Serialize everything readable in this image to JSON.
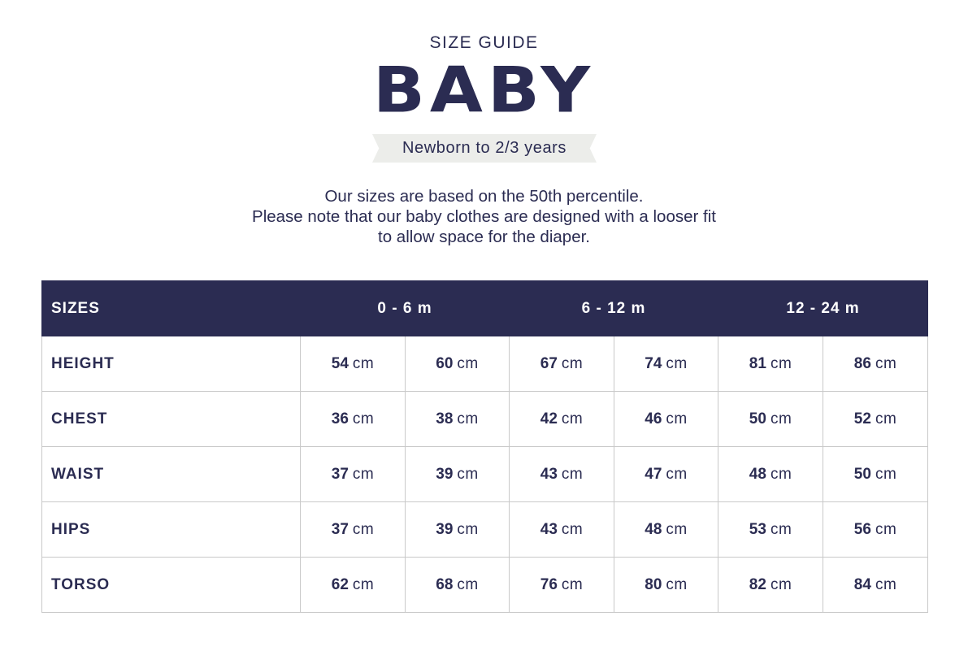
{
  "header": {
    "eyebrow": "SIZE GUIDE",
    "title": "BABY",
    "ribbon": "Newborn to 2/3 years"
  },
  "intro": {
    "line1": "Our sizes are based on the 50th percentile.",
    "line2": "Please note that our baby clothes are designed with a looser fit",
    "line3": "to allow space for the diaper."
  },
  "table": {
    "corner_label": "SIZES",
    "groups": [
      "0 - 6 m",
      "6 - 12 m",
      "12 - 24 m"
    ],
    "unit": "cm",
    "rows": [
      {
        "label": "HEIGHT",
        "values": [
          "54",
          "60",
          "67",
          "74",
          "81",
          "86"
        ]
      },
      {
        "label": "CHEST",
        "values": [
          "36",
          "38",
          "42",
          "46",
          "50",
          "52"
        ]
      },
      {
        "label": "WAIST",
        "values": [
          "37",
          "39",
          "43",
          "47",
          "48",
          "50"
        ]
      },
      {
        "label": "HIPS",
        "values": [
          "37",
          "39",
          "43",
          "48",
          "53",
          "56"
        ]
      },
      {
        "label": "TORSO",
        "values": [
          "62",
          "68",
          "76",
          "80",
          "82",
          "84"
        ]
      }
    ]
  },
  "colors": {
    "navy": "#2b2c52",
    "ribbon": "#ecedea",
    "grid": "#c9c9c9"
  }
}
